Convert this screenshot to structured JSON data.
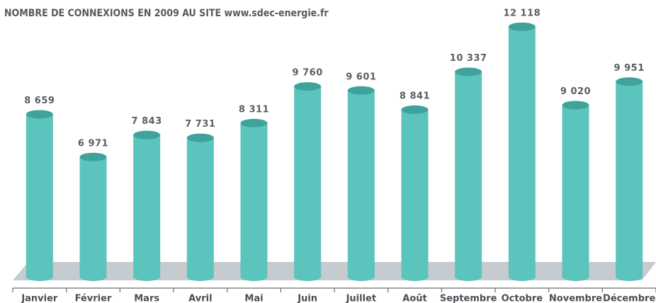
{
  "chart_data": {
    "type": "bar",
    "title": "NOMBRE DE CONNEXIONS EN 2009 AU SITE www.sdec-energie.fr",
    "categories": [
      "Janvier",
      "Février",
      "Mars",
      "Avril",
      "Mai",
      "Juin",
      "Juillet",
      "Août",
      "Septembre",
      "Octobre",
      "Novembre",
      "Décembre"
    ],
    "values": [
      8659,
      6971,
      7843,
      7731,
      8311,
      9760,
      9601,
      8841,
      10337,
      12118,
      9020,
      9951
    ],
    "value_labels": [
      "8 659",
      "6 971",
      "7 843",
      "7 731",
      "8 311",
      "9 760",
      "9 601",
      "8 841",
      "10 337",
      "12 118",
      "9 020",
      "9 951"
    ],
    "color": "#5bc4bd"
  }
}
